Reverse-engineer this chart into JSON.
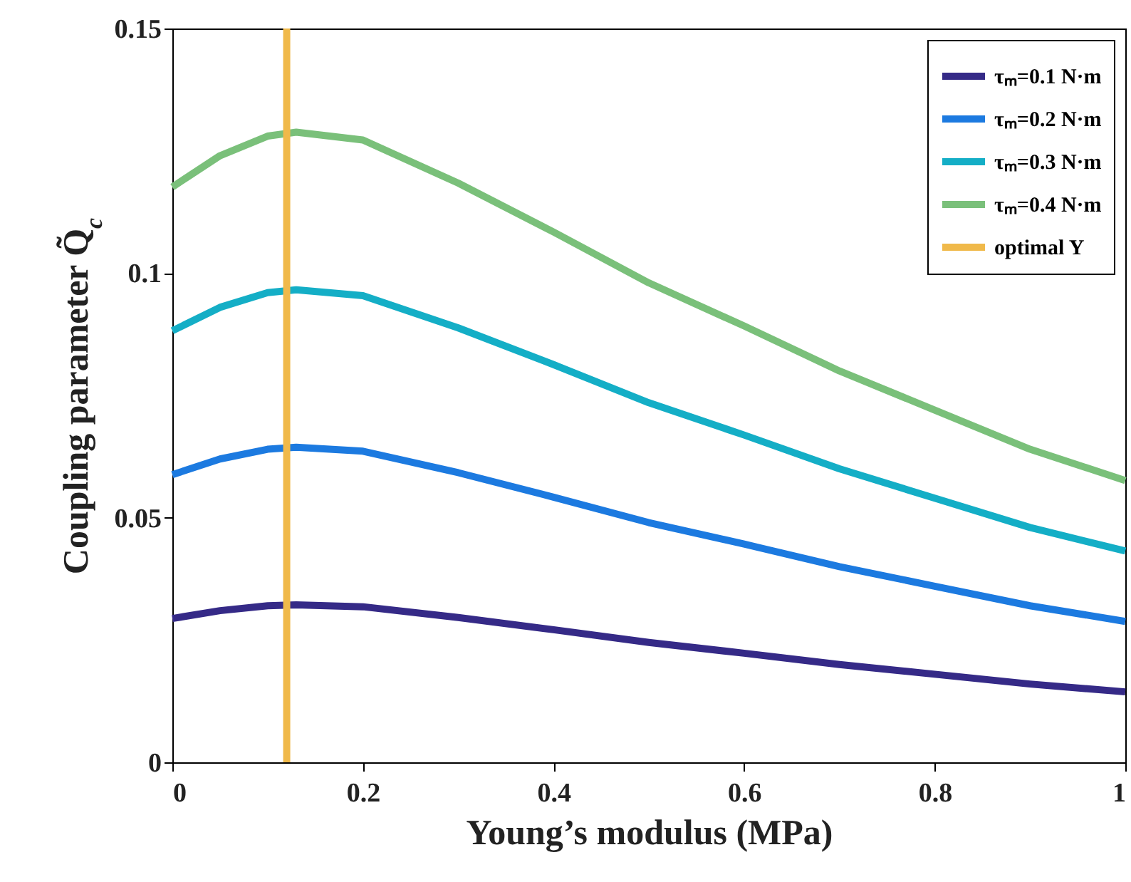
{
  "chart_data": {
    "type": "line",
    "xlabel": "Young’s modulus (MPa)",
    "ylabel": "Coupling parameter Q̃$_{c}$",
    "x": [
      0,
      0.05,
      0.1,
      0.13,
      0.2,
      0.3,
      0.4,
      0.5,
      0.6,
      0.7,
      0.8,
      0.9,
      1.0
    ],
    "series": [
      {
        "name": "τₘ=0.1 N·m",
        "color": "#352a87",
        "values": [
          0.0294,
          0.031,
          0.032,
          0.0322,
          0.0318,
          0.0296,
          0.0271,
          0.0245,
          0.0223,
          0.02,
          0.018,
          0.016,
          0.0144
        ]
      },
      {
        "name": "τₘ=0.2 N·m",
        "color": "#1c7ae0",
        "values": [
          0.0588,
          0.062,
          0.064,
          0.0644,
          0.0636,
          0.0592,
          0.0542,
          0.049,
          0.0446,
          0.04,
          0.036,
          0.032,
          0.0288
        ]
      },
      {
        "name": "τₘ=0.3 N·m",
        "color": "#14aec6",
        "values": [
          0.0882,
          0.093,
          0.096,
          0.0966,
          0.0954,
          0.0888,
          0.0813,
          0.0735,
          0.0669,
          0.06,
          0.054,
          0.048,
          0.0432
        ]
      },
      {
        "name": "τₘ=0.4 N·m",
        "color": "#7ac07a",
        "values": [
          0.1176,
          0.124,
          0.128,
          0.1288,
          0.1272,
          0.1184,
          0.1084,
          0.098,
          0.0892,
          0.08,
          0.072,
          0.064,
          0.0576
        ]
      },
      {
        "name": "optimal Y",
        "color": "#f0b94a",
        "x": [
          0.12,
          0.12
        ],
        "values": [
          0,
          0.15
        ]
      }
    ],
    "xlim": [
      0,
      1
    ],
    "xticks": [
      0,
      0.2,
      0.4,
      0.6,
      0.8,
      1
    ],
    "ylim": [
      0,
      0.15
    ],
    "yticks": [
      0,
      0.05,
      0.1,
      0.15
    ],
    "grid": false,
    "legend": "top right",
    "marker": "none",
    "line_style": "solid"
  }
}
